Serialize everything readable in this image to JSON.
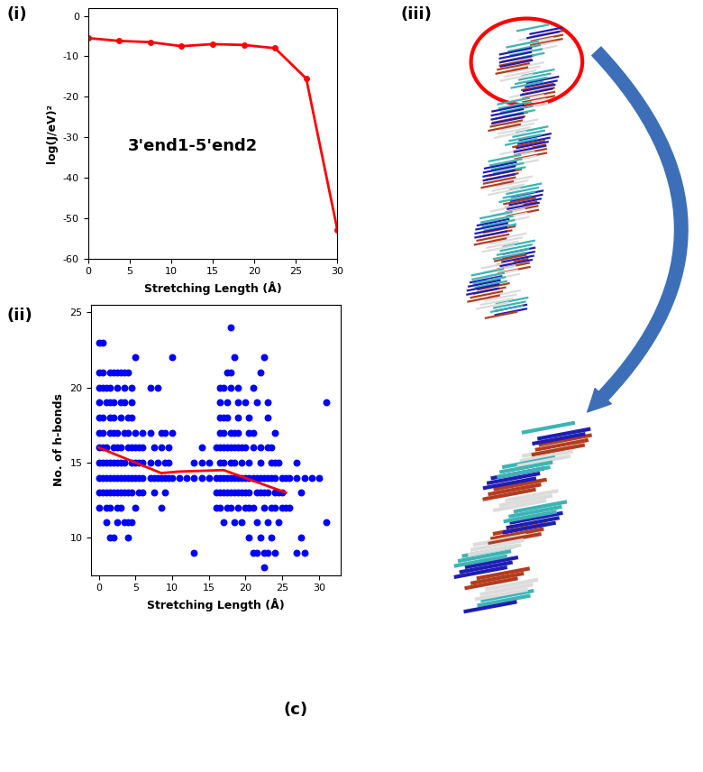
{
  "chart_data": [
    {
      "type": "line",
      "panel": "(i)",
      "title": "3'end1-5'end2",
      "xlabel": "Stretching Length (Å)",
      "ylabel": "log(J/eV)²",
      "x": [
        0,
        3.75,
        7.5,
        11.25,
        15,
        18.75,
        22.5,
        26.25,
        30
      ],
      "values": [
        -5.5,
        -6.2,
        -6.5,
        -7.5,
        -7.0,
        -7.2,
        -8.0,
        -15.5,
        -53.0
      ],
      "color": "#ff0000",
      "marker": "o",
      "xlim": [
        0,
        30
      ],
      "xticks": [
        0,
        5,
        10,
        15,
        20,
        25,
        30
      ],
      "ylim": [
        -60,
        2
      ],
      "yticks": [
        -60,
        -50,
        -40,
        -30,
        -20,
        -10,
        0
      ]
    },
    {
      "type": "scatter",
      "panel": "(ii)",
      "xlabel": "Stretching Length (Å)",
      "ylabel": "No. of h-bonds",
      "color": "#0000ff",
      "points": [
        [
          0,
          12
        ],
        [
          0,
          13
        ],
        [
          0,
          14
        ],
        [
          0,
          15
        ],
        [
          0,
          16
        ],
        [
          0,
          17
        ],
        [
          0,
          18
        ],
        [
          0,
          19
        ],
        [
          0,
          20
        ],
        [
          0,
          21
        ],
        [
          0,
          23
        ],
        [
          0.5,
          13
        ],
        [
          0.5,
          14
        ],
        [
          0.5,
          15
        ],
        [
          0.5,
          16
        ],
        [
          0.5,
          17
        ],
        [
          0.5,
          18
        ],
        [
          0.5,
          20
        ],
        [
          0.5,
          21
        ],
        [
          0.5,
          23
        ],
        [
          1,
          11
        ],
        [
          1,
          12
        ],
        [
          1,
          13
        ],
        [
          1,
          14
        ],
        [
          1,
          15
        ],
        [
          1,
          16
        ],
        [
          1,
          19
        ],
        [
          1,
          20
        ],
        [
          1.5,
          10
        ],
        [
          1.5,
          12
        ],
        [
          1.5,
          13
        ],
        [
          1.5,
          14
        ],
        [
          1.5,
          15
        ],
        [
          1.5,
          17
        ],
        [
          1.5,
          18
        ],
        [
          1.5,
          19
        ],
        [
          1.5,
          20
        ],
        [
          1.5,
          21
        ],
        [
          2,
          10
        ],
        [
          2,
          13
        ],
        [
          2,
          14
        ],
        [
          2,
          15
        ],
        [
          2,
          16
        ],
        [
          2,
          17
        ],
        [
          2,
          18
        ],
        [
          2,
          19
        ],
        [
          2,
          21
        ],
        [
          2.5,
          11
        ],
        [
          2.5,
          12
        ],
        [
          2.5,
          13
        ],
        [
          2.5,
          14
        ],
        [
          2.5,
          15
        ],
        [
          2.5,
          16
        ],
        [
          2.5,
          17
        ],
        [
          2.5,
          20
        ],
        [
          2.5,
          21
        ],
        [
          3,
          12
        ],
        [
          3,
          13
        ],
        [
          3,
          14
        ],
        [
          3,
          15
        ],
        [
          3,
          16
        ],
        [
          3,
          18
        ],
        [
          3,
          19
        ],
        [
          3,
          21
        ],
        [
          3.5,
          11
        ],
        [
          3.5,
          13
        ],
        [
          3.5,
          14
        ],
        [
          3.5,
          15
        ],
        [
          3.5,
          17
        ],
        [
          3.5,
          19
        ],
        [
          3.5,
          20
        ],
        [
          3.5,
          21
        ],
        [
          4,
          10
        ],
        [
          4,
          11
        ],
        [
          4,
          13
        ],
        [
          4,
          14
        ],
        [
          4,
          16
        ],
        [
          4,
          17
        ],
        [
          4,
          18
        ],
        [
          4,
          21
        ],
        [
          4.5,
          11
        ],
        [
          4.5,
          13
        ],
        [
          4.5,
          14
        ],
        [
          4.5,
          15
        ],
        [
          4.5,
          16
        ],
        [
          4.5,
          18
        ],
        [
          4.5,
          19
        ],
        [
          4.5,
          20
        ],
        [
          5,
          12
        ],
        [
          5,
          14
        ],
        [
          5,
          15
        ],
        [
          5,
          16
        ],
        [
          5,
          17
        ],
        [
          5,
          22
        ],
        [
          5.5,
          13
        ],
        [
          5.5,
          14
        ],
        [
          5.5,
          15
        ],
        [
          5.5,
          16
        ],
        [
          6,
          13
        ],
        [
          6,
          14
        ],
        [
          6,
          15
        ],
        [
          6,
          16
        ],
        [
          6,
          17
        ],
        [
          7,
          14
        ],
        [
          7,
          15
        ],
        [
          7,
          17
        ],
        [
          7,
          20
        ],
        [
          7.5,
          13
        ],
        [
          7.5,
          14
        ],
        [
          7.5,
          16
        ],
        [
          8,
          14
        ],
        [
          8,
          15
        ],
        [
          8,
          20
        ],
        [
          8.5,
          12
        ],
        [
          8.5,
          14
        ],
        [
          8.5,
          16
        ],
        [
          8.5,
          17
        ],
        [
          9,
          13
        ],
        [
          9,
          14
        ],
        [
          9,
          15
        ],
        [
          9,
          17
        ],
        [
          9.5,
          14
        ],
        [
          9.5,
          15
        ],
        [
          9.5,
          16
        ],
        [
          10,
          14
        ],
        [
          10,
          17
        ],
        [
          10,
          22
        ],
        [
          11,
          14
        ],
        [
          12,
          14
        ],
        [
          13,
          9
        ],
        [
          13,
          14
        ],
        [
          13,
          15
        ],
        [
          14,
          14
        ],
        [
          14,
          15
        ],
        [
          14,
          16
        ],
        [
          15,
          14
        ],
        [
          15,
          15
        ],
        [
          16,
          12
        ],
        [
          16,
          13
        ],
        [
          16,
          14
        ],
        [
          16,
          16
        ],
        [
          16.5,
          12
        ],
        [
          16.5,
          13
        ],
        [
          16.5,
          14
        ],
        [
          16.5,
          15
        ],
        [
          16.5,
          16
        ],
        [
          16.5,
          17
        ],
        [
          16.5,
          18
        ],
        [
          16.5,
          19
        ],
        [
          16.5,
          20
        ],
        [
          17,
          11
        ],
        [
          17,
          13
        ],
        [
          17,
          14
        ],
        [
          17,
          15
        ],
        [
          17,
          16
        ],
        [
          17,
          17
        ],
        [
          17,
          18
        ],
        [
          17,
          20
        ],
        [
          17.5,
          12
        ],
        [
          17.5,
          13
        ],
        [
          17.5,
          14
        ],
        [
          17.5,
          16
        ],
        [
          17.5,
          18
        ],
        [
          17.5,
          19
        ],
        [
          17.5,
          21
        ],
        [
          18,
          12
        ],
        [
          18,
          13
        ],
        [
          18,
          14
        ],
        [
          18,
          15
        ],
        [
          18,
          16
        ],
        [
          18,
          17
        ],
        [
          18,
          20
        ],
        [
          18,
          21
        ],
        [
          18,
          24
        ],
        [
          18.5,
          11
        ],
        [
          18.5,
          13
        ],
        [
          18.5,
          14
        ],
        [
          18.5,
          15
        ],
        [
          18.5,
          16
        ],
        [
          18.5,
          17
        ],
        [
          18.5,
          22
        ],
        [
          19,
          12
        ],
        [
          19,
          13
        ],
        [
          19,
          14
        ],
        [
          19,
          16
        ],
        [
          19,
          17
        ],
        [
          19,
          18
        ],
        [
          19,
          19
        ],
        [
          19,
          20
        ],
        [
          19.5,
          11
        ],
        [
          19.5,
          13
        ],
        [
          19.5,
          14
        ],
        [
          19.5,
          15
        ],
        [
          19.5,
          16
        ],
        [
          20,
          12
        ],
        [
          20,
          13
        ],
        [
          20,
          14
        ],
        [
          20,
          16
        ],
        [
          20,
          19
        ],
        [
          20.5,
          10
        ],
        [
          20.5,
          12
        ],
        [
          20.5,
          13
        ],
        [
          20.5,
          14
        ],
        [
          20.5,
          15
        ],
        [
          20.5,
          17
        ],
        [
          20.5,
          18
        ],
        [
          21,
          9
        ],
        [
          21,
          12
        ],
        [
          21,
          14
        ],
        [
          21,
          16
        ],
        [
          21,
          17
        ],
        [
          21,
          20
        ],
        [
          21.5,
          9
        ],
        [
          21.5,
          11
        ],
        [
          21.5,
          13
        ],
        [
          21.5,
          14
        ],
        [
          21.5,
          19
        ],
        [
          22,
          10
        ],
        [
          22,
          13
        ],
        [
          22,
          14
        ],
        [
          22,
          15
        ],
        [
          22,
          16
        ],
        [
          22,
          21
        ],
        [
          22.5,
          8
        ],
        [
          22.5,
          9
        ],
        [
          22.5,
          12
        ],
        [
          22.5,
          13
        ],
        [
          22.5,
          14
        ],
        [
          22.5,
          22
        ],
        [
          23,
          9
        ],
        [
          23,
          11
        ],
        [
          23,
          13
        ],
        [
          23,
          14
        ],
        [
          23,
          16
        ],
        [
          23,
          18
        ],
        [
          23,
          19
        ],
        [
          23.5,
          10
        ],
        [
          23.5,
          12
        ],
        [
          23.5,
          14
        ],
        [
          23.5,
          15
        ],
        [
          23.5,
          16
        ],
        [
          24,
          9
        ],
        [
          24,
          12
        ],
        [
          24,
          13
        ],
        [
          24,
          14
        ],
        [
          24,
          15
        ],
        [
          24,
          17
        ],
        [
          24.5,
          11
        ],
        [
          24.5,
          13
        ],
        [
          24.5,
          15
        ],
        [
          25,
          12
        ],
        [
          25,
          13
        ],
        [
          25,
          14
        ],
        [
          25.5,
          12
        ],
        [
          25.5,
          14
        ],
        [
          26,
          12
        ],
        [
          26,
          14
        ],
        [
          27,
          9
        ],
        [
          27,
          14
        ],
        [
          27,
          15
        ],
        [
          27.5,
          10
        ],
        [
          27.5,
          13
        ],
        [
          28,
          9
        ],
        [
          28,
          14
        ],
        [
          29,
          14
        ],
        [
          30,
          14
        ],
        [
          31,
          11
        ],
        [
          31,
          19
        ]
      ],
      "trend": {
        "x": [
          0,
          8.5,
          11,
          17,
          25.5
        ],
        "values": [
          16,
          14.3,
          14.4,
          14.5,
          13
        ],
        "color": "#ff0000"
      },
      "xlim": [
        -1,
        33
      ],
      "xticks": [
        0,
        5,
        10,
        15,
        20,
        25,
        30
      ],
      "ylim": [
        7.5,
        25.5
      ],
      "yticks": [
        10,
        15,
        20,
        25
      ]
    }
  ],
  "panels": {
    "image_label": "(iii)",
    "figure_label": "(c)"
  }
}
